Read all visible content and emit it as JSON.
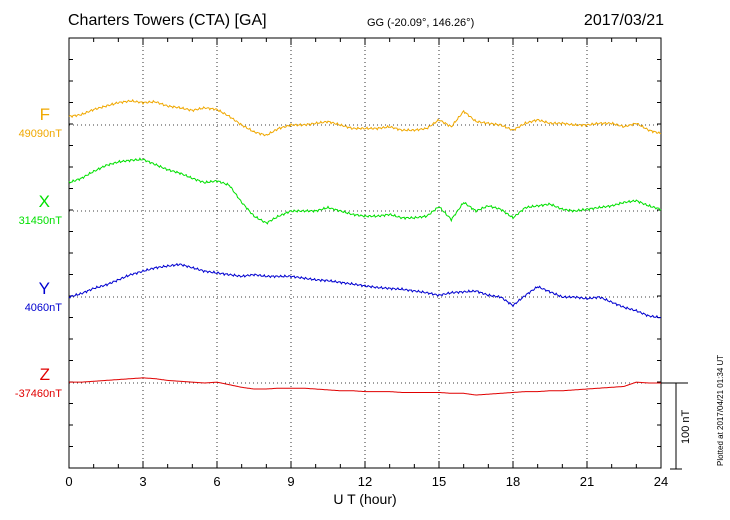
{
  "header": {
    "station": "Charters Towers (CTA)  [GA]",
    "coords": "GG (-20.09°, 146.26°)",
    "date": "2017/03/21"
  },
  "footer": {
    "xlabel": "U T (hour)",
    "plotted": "Plotted at 2017/04/21 01:34 UT",
    "scale_label": "100 nT"
  },
  "channels": [
    {
      "name": "F",
      "baseline": "49090nT",
      "color": "#f0a800"
    },
    {
      "name": "X",
      "baseline": "31450nT",
      "color": "#00e000"
    },
    {
      "name": "Y",
      "baseline": "4060nT",
      "color": "#0000d0"
    },
    {
      "name": "Z",
      "baseline": "-37460nT",
      "color": "#e00000"
    }
  ],
  "chart_data": {
    "type": "line",
    "xlabel": "U T (hour)",
    "xlim": [
      0,
      24
    ],
    "x_ticks": [
      0,
      3,
      6,
      9,
      12,
      15,
      18,
      21,
      24
    ],
    "grid": true,
    "units": "nT",
    "scale_bar_nT": 100,
    "x": [
      0,
      0.5,
      1,
      1.5,
      2,
      2.5,
      3,
      3.5,
      4,
      4.5,
      5,
      5.5,
      6,
      6.5,
      7,
      7.5,
      8,
      8.5,
      9,
      9.5,
      10,
      10.5,
      11,
      11.5,
      12,
      12.5,
      13,
      13.5,
      14,
      14.5,
      15,
      15.5,
      16,
      16.5,
      17,
      17.5,
      18,
      18.5,
      19,
      19.5,
      20,
      20.5,
      21,
      21.5,
      22,
      22.5,
      23,
      23.5,
      24
    ],
    "series": [
      {
        "name": "F",
        "baseline_nT": 49090,
        "color": "#f0a800",
        "values": [
          10,
          12,
          18,
          22,
          26,
          28,
          26,
          27,
          22,
          20,
          17,
          20,
          18,
          10,
          0,
          -8,
          -12,
          -4,
          0,
          0,
          2,
          4,
          0,
          -4,
          -4,
          -4,
          -2,
          -6,
          -6,
          -4,
          6,
          -2,
          16,
          4,
          2,
          0,
          -6,
          2,
          6,
          2,
          2,
          0,
          0,
          2,
          2,
          -2,
          2,
          -6,
          -10
        ]
      },
      {
        "name": "X",
        "baseline_nT": 31450,
        "color": "#00e000",
        "values": [
          33,
          38,
          46,
          53,
          57,
          59,
          60,
          54,
          48,
          44,
          38,
          33,
          35,
          30,
          10,
          -6,
          -14,
          -6,
          0,
          0,
          0,
          4,
          0,
          -4,
          -6,
          -6,
          -4,
          -8,
          -8,
          -6,
          5,
          -10,
          10,
          0,
          6,
          2,
          -8,
          4,
          6,
          8,
          2,
          0,
          2,
          4,
          6,
          10,
          12,
          6,
          2
        ]
      },
      {
        "name": "Y",
        "baseline_nT": 4060,
        "color": "#0000d0",
        "values": [
          0,
          4,
          10,
          14,
          20,
          26,
          30,
          34,
          36,
          38,
          34,
          30,
          28,
          26,
          24,
          26,
          24,
          24,
          24,
          22,
          20,
          19,
          17,
          15,
          13,
          11,
          10,
          9,
          7,
          5,
          2,
          5,
          6,
          7,
          2,
          0,
          -10,
          2,
          12,
          6,
          0,
          0,
          -2,
          0,
          -6,
          -12,
          -16,
          -22,
          -24
        ]
      },
      {
        "name": "Z",
        "baseline_nT": -37460,
        "color": "#e00000",
        "values": [
          1,
          1,
          2,
          3,
          4,
          5,
          6,
          5,
          3,
          2,
          1,
          0,
          1,
          -2,
          -5,
          -7,
          -7,
          -6,
          -6,
          -6,
          -7,
          -8,
          -9,
          -9,
          -10,
          -10,
          -10,
          -11,
          -11,
          -11,
          -11,
          -12,
          -12,
          -14,
          -13,
          -12,
          -11,
          -10,
          -10,
          -9,
          -9,
          -8,
          -7,
          -6,
          -5,
          -4,
          1,
          0,
          0
        ]
      }
    ]
  }
}
